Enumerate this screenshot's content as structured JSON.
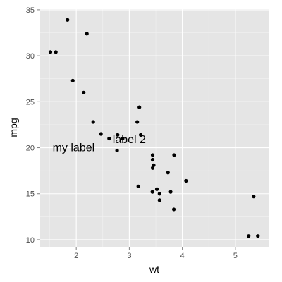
{
  "chart_data": {
    "type": "scatter",
    "xlabel": "wt",
    "ylabel": "mpg",
    "xlim": [
      1.32,
      5.64
    ],
    "ylim": [
      9.23,
      35.07
    ],
    "x_ticks": [
      2,
      3,
      4,
      5
    ],
    "y_ticks": [
      10,
      15,
      20,
      25,
      30,
      35
    ],
    "x_tick_labels": [
      "2",
      "3",
      "4",
      "5"
    ],
    "y_tick_labels": [
      "10",
      "15",
      "20",
      "25",
      "30",
      "35"
    ],
    "grid": true,
    "colors": {
      "panel_background": "#e5e5e5",
      "grid_major": "#ffffff",
      "grid_minor": "#f2f2f2",
      "point": "#000000",
      "tick_text": "#4d4d4d",
      "text": "#000000"
    },
    "points": [
      {
        "x": 1.513,
        "y": 30.4
      },
      {
        "x": 1.615,
        "y": 30.4
      },
      {
        "x": 1.835,
        "y": 33.9
      },
      {
        "x": 1.935,
        "y": 27.3
      },
      {
        "x": 2.14,
        "y": 26.0
      },
      {
        "x": 2.2,
        "y": 32.4
      },
      {
        "x": 2.32,
        "y": 22.8
      },
      {
        "x": 2.465,
        "y": 21.5
      },
      {
        "x": 2.62,
        "y": 21.0
      },
      {
        "x": 2.77,
        "y": 19.7
      },
      {
        "x": 2.78,
        "y": 21.4
      },
      {
        "x": 2.875,
        "y": 21.0
      },
      {
        "x": 3.15,
        "y": 22.8
      },
      {
        "x": 3.17,
        "y": 15.8
      },
      {
        "x": 3.19,
        "y": 24.4
      },
      {
        "x": 3.215,
        "y": 21.4
      },
      {
        "x": 3.435,
        "y": 15.2
      },
      {
        "x": 3.44,
        "y": 18.7
      },
      {
        "x": 3.44,
        "y": 19.2
      },
      {
        "x": 3.44,
        "y": 17.8
      },
      {
        "x": 3.46,
        "y": 18.1
      },
      {
        "x": 3.52,
        "y": 15.5
      },
      {
        "x": 3.57,
        "y": 14.3
      },
      {
        "x": 3.57,
        "y": 15.0
      },
      {
        "x": 3.73,
        "y": 17.3
      },
      {
        "x": 3.78,
        "y": 15.2
      },
      {
        "x": 3.84,
        "y": 13.3
      },
      {
        "x": 3.845,
        "y": 19.2
      },
      {
        "x": 4.07,
        "y": 16.4
      },
      {
        "x": 5.25,
        "y": 10.4
      },
      {
        "x": 5.345,
        "y": 14.7
      },
      {
        "x": 5.424,
        "y": 10.4
      }
    ],
    "annotations": [
      {
        "text": "my label",
        "x": 1.95,
        "y": 20.0
      },
      {
        "text": "label 2",
        "x": 3.0,
        "y": 20.9
      }
    ]
  }
}
